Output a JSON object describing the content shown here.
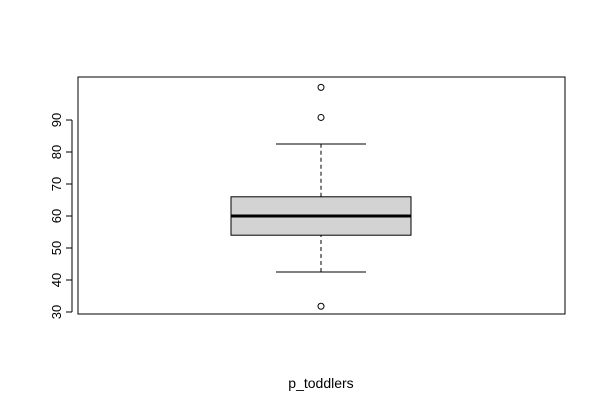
{
  "chart_data": {
    "type": "boxplot",
    "title": "",
    "xlabel": "p_toddlers",
    "ylabel": "",
    "ylim": [
      30,
      100
    ],
    "yticks": [
      30,
      40,
      50,
      60,
      70,
      80,
      90
    ],
    "ytick_labels": [
      "30",
      "40",
      "50",
      "60",
      "70",
      "80",
      "90"
    ],
    "grid": false,
    "box_fill": "#d3d3d3",
    "line_color": "#000000",
    "stats": {
      "whisker_low": 42.5,
      "q1": 54,
      "median": 60,
      "q3": 66,
      "whisker_high": 82.5
    },
    "outliers": [
      31.8,
      90.8,
      100.2
    ]
  }
}
